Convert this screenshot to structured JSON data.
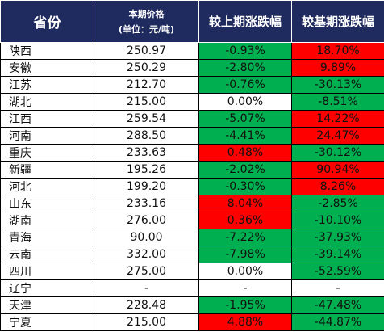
{
  "colors": {
    "header_bg": "#1f2a5e",
    "up": "#ff0000",
    "down": "#00b050",
    "flat": "#ffffff"
  },
  "header": {
    "province": "省份",
    "price_line1": "本期价格",
    "price_line2": "(单位：元/吨)",
    "mom": "较上期涨跌幅",
    "yoy": "较基期涨跌幅"
  },
  "rows": [
    {
      "province": "陕西",
      "price": "250.97",
      "mom": "-0.93%",
      "mom_color": "down",
      "yoy": "18.70%",
      "yoy_color": "up"
    },
    {
      "province": "安徽",
      "price": "250.29",
      "mom": "-2.80%",
      "mom_color": "down",
      "yoy": "9.89%",
      "yoy_color": "up"
    },
    {
      "province": "江苏",
      "price": "212.70",
      "mom": "-0.76%",
      "mom_color": "down",
      "yoy": "-30.13%",
      "yoy_color": "down"
    },
    {
      "province": "湖北",
      "price": "215.00",
      "mom": "0.00%",
      "mom_color": "flat",
      "yoy": "-8.51%",
      "yoy_color": "down"
    },
    {
      "province": "江西",
      "price": "259.54",
      "mom": "-5.07%",
      "mom_color": "down",
      "yoy": "14.22%",
      "yoy_color": "up"
    },
    {
      "province": "河南",
      "price": "288.50",
      "mom": "-4.41%",
      "mom_color": "down",
      "yoy": "24.47%",
      "yoy_color": "up"
    },
    {
      "province": "重庆",
      "price": "233.63",
      "mom": "0.48%",
      "mom_color": "up",
      "yoy": "-30.12%",
      "yoy_color": "down"
    },
    {
      "province": "新疆",
      "price": "195.26",
      "mom": "-2.02%",
      "mom_color": "down",
      "yoy": "90.94%",
      "yoy_color": "up"
    },
    {
      "province": "河北",
      "price": "199.20",
      "mom": "-0.30%",
      "mom_color": "down",
      "yoy": "8.26%",
      "yoy_color": "up"
    },
    {
      "province": "山东",
      "price": "233.16",
      "mom": "8.04%",
      "mom_color": "up",
      "yoy": "-2.85%",
      "yoy_color": "down"
    },
    {
      "province": "湖南",
      "price": "276.00",
      "mom": "0.36%",
      "mom_color": "up",
      "yoy": "-10.10%",
      "yoy_color": "down"
    },
    {
      "province": "青海",
      "price": "90.00",
      "mom": "-7.22%",
      "mom_color": "down",
      "yoy": "-37.93%",
      "yoy_color": "down"
    },
    {
      "province": "云南",
      "price": "332.00",
      "mom": "-7.98%",
      "mom_color": "down",
      "yoy": "-39.14%",
      "yoy_color": "down"
    },
    {
      "province": "四川",
      "price": "275.00",
      "mom": "0.00%",
      "mom_color": "flat",
      "yoy": "-52.59%",
      "yoy_color": "down"
    },
    {
      "province": "辽宁",
      "price": "-",
      "mom": "-",
      "mom_color": "flat",
      "yoy": "-",
      "yoy_color": "flat"
    },
    {
      "province": "天津",
      "price": "228.48",
      "mom": "-1.95%",
      "mom_color": "down",
      "yoy": "-47.48%",
      "yoy_color": "down"
    },
    {
      "province": "宁夏",
      "price": "215.00",
      "mom": "4.88%",
      "mom_color": "up",
      "yoy": "-44.87%",
      "yoy_color": "down"
    }
  ]
}
